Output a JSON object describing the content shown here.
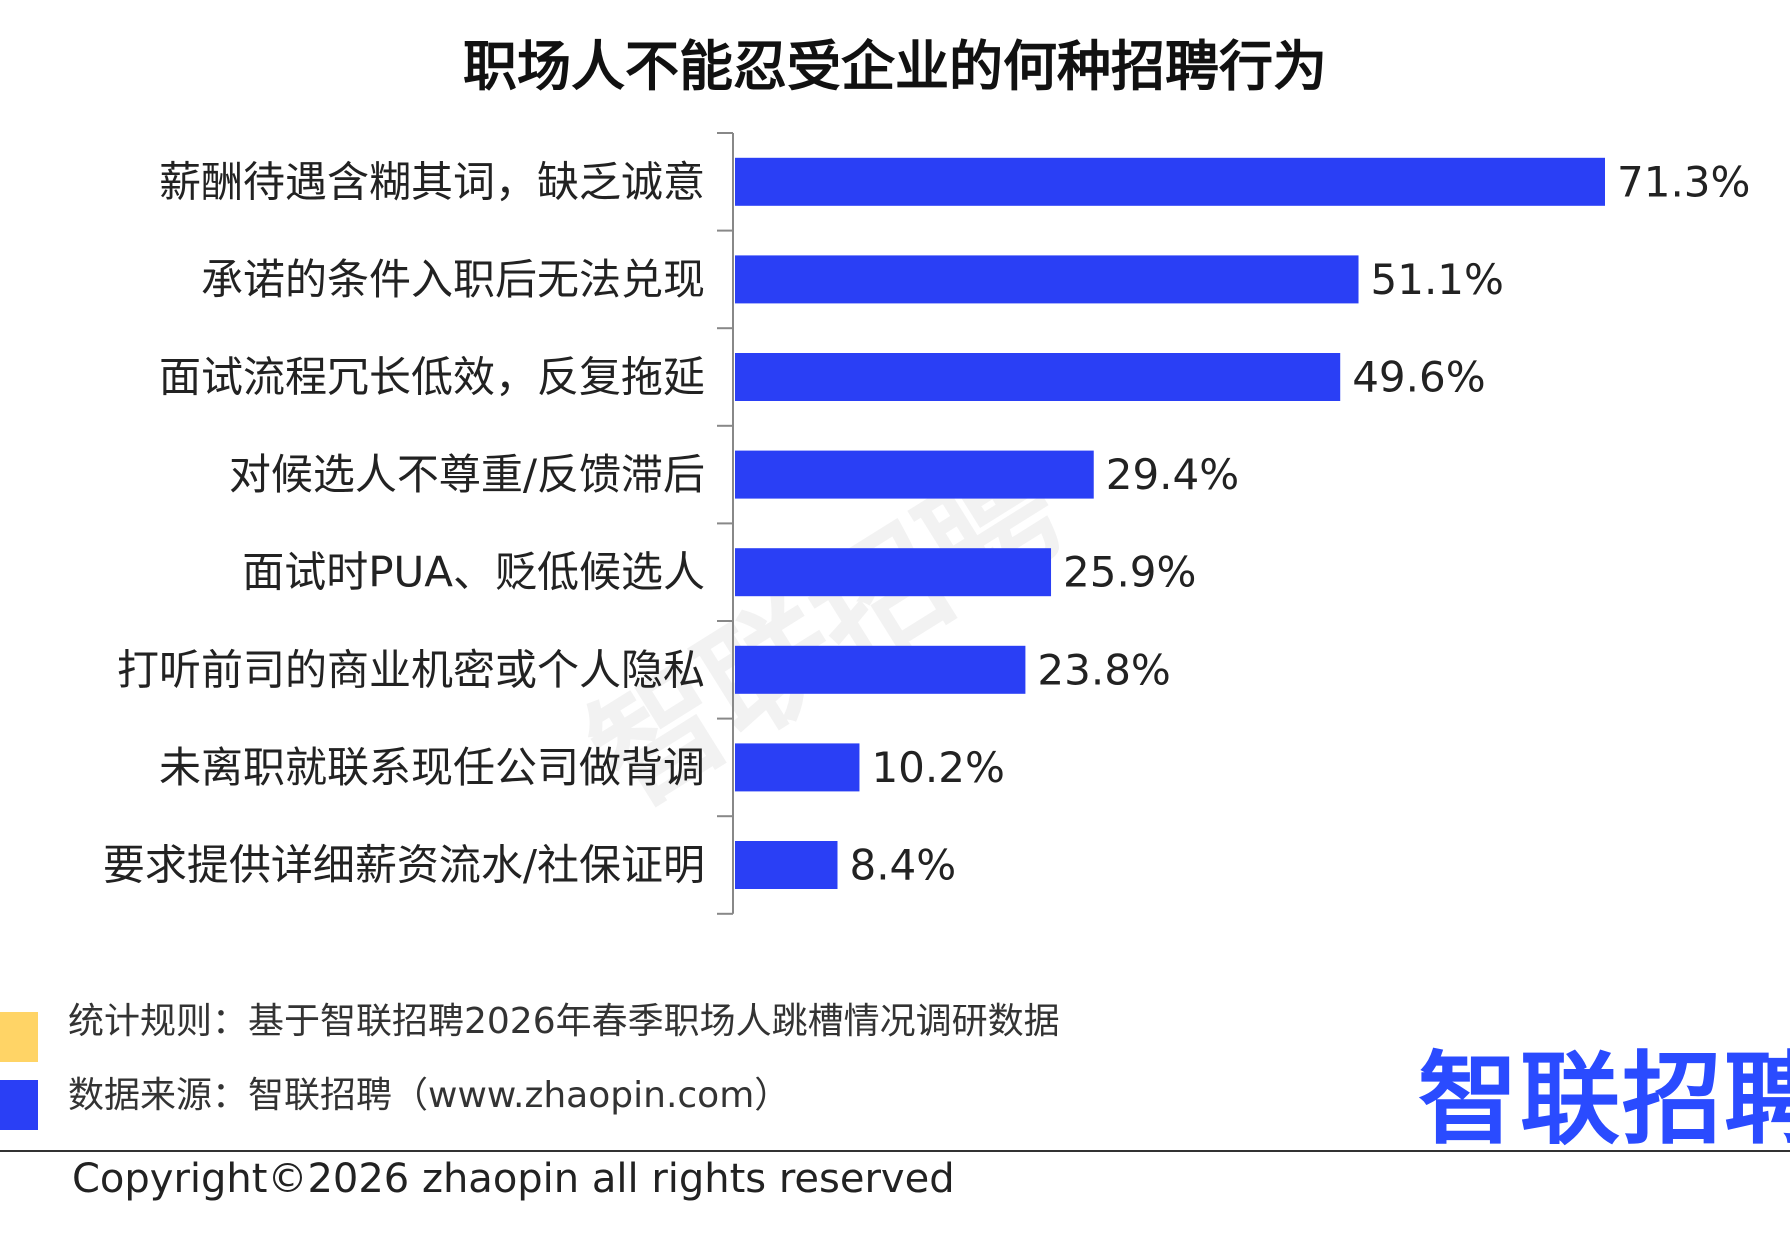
{
  "title": "职场人不能忍受企业的何种招聘行为",
  "watermark": "智联招聘",
  "chart_data": {
    "type": "bar",
    "orientation": "horizontal",
    "title": "职场人不能忍受企业的何种招聘行为",
    "categories": [
      "薪酬待遇含糊其词，缺乏诚意",
      "承诺的条件入职后无法兑现",
      "面试流程冗长低效，反复拖延",
      "对候选人不尊重/反馈滞后",
      "面试时PUA、贬低候选人",
      "打听前司的商业机密或个人隐私",
      "未离职就联系现任公司做背调",
      "要求提供详细薪资流水/社保证明"
    ],
    "values": [
      71.3,
      51.1,
      49.6,
      29.4,
      25.9,
      23.8,
      10.2,
      8.4
    ],
    "value_labels": [
      "71.3%",
      "51.1%",
      "49.6%",
      "29.4%",
      "25.9%",
      "23.8%",
      "10.2%",
      "8.4%"
    ],
    "unit": "%",
    "bar_color": "#2a3ff5",
    "grid": false,
    "legend": "none"
  },
  "notes": [
    {
      "text": "统计规则：基于智联招聘2026年春季职场人跳槽情况调研数据",
      "color": "#ffd466"
    },
    {
      "text": "数据来源：智联招聘（www.zhaopin.com）",
      "color": "#2a3ff5"
    }
  ],
  "logo_text": "智联招聘",
  "logo_color": "#2a4bff",
  "copyright": "Copyright©2026 zhaopin all rights reserved"
}
